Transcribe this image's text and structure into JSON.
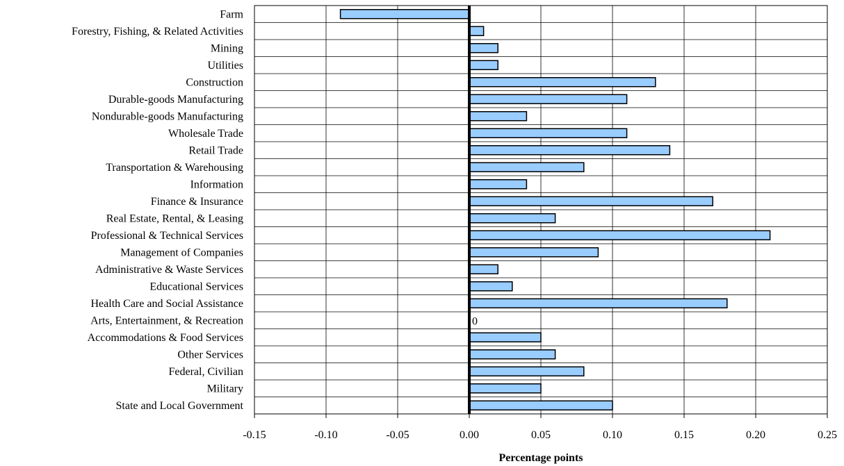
{
  "chart_data": {
    "type": "bar",
    "orientation": "horizontal",
    "categories": [
      "Farm",
      "Forestry, Fishing, & Related Activities",
      "Mining",
      "Utilities",
      "Construction",
      "Durable-goods Manufacturing",
      "Nondurable-goods Manufacturing",
      "Wholesale Trade",
      "Retail Trade",
      "Transportation & Warehousing",
      "Information",
      "Finance & Insurance",
      "Real Estate, Rental, & Leasing",
      "Professional & Technical Services",
      "Management of Companies",
      "Administrative & Waste Services",
      "Educational Services",
      "Health Care and Social Assistance",
      "Arts, Entertainment, & Recreation",
      "Accommodations & Food Services",
      "Other Services",
      "Federal, Civilian",
      "Military",
      "State and Local Government"
    ],
    "values": [
      -0.09,
      0.01,
      0.02,
      0.02,
      0.13,
      0.11,
      0.04,
      0.11,
      0.14,
      0.08,
      0.04,
      0.17,
      0.06,
      0.21,
      0.09,
      0.02,
      0.03,
      0.18,
      0,
      0.05,
      0.06,
      0.08,
      0.05,
      0.1
    ],
    "data_labels": [
      {
        "category": "Arts, Entertainment, & Recreation",
        "text": "0"
      }
    ],
    "xlabel": "Percentage points",
    "xlim": [
      -0.15,
      0.25
    ],
    "xticks": [
      "-0.15",
      "-0.10",
      "-0.05",
      "0.00",
      "0.05",
      "0.10",
      "0.15",
      "0.20",
      "0.25"
    ],
    "xtick_values": [
      -0.15,
      -0.1,
      -0.05,
      0.0,
      0.05,
      0.1,
      0.15,
      0.2,
      0.25
    ],
    "grid": true,
    "legend": "none",
    "bar_color": "#99ccff",
    "bar_edge_color": "#000000",
    "zero_line_color": "#000000"
  }
}
